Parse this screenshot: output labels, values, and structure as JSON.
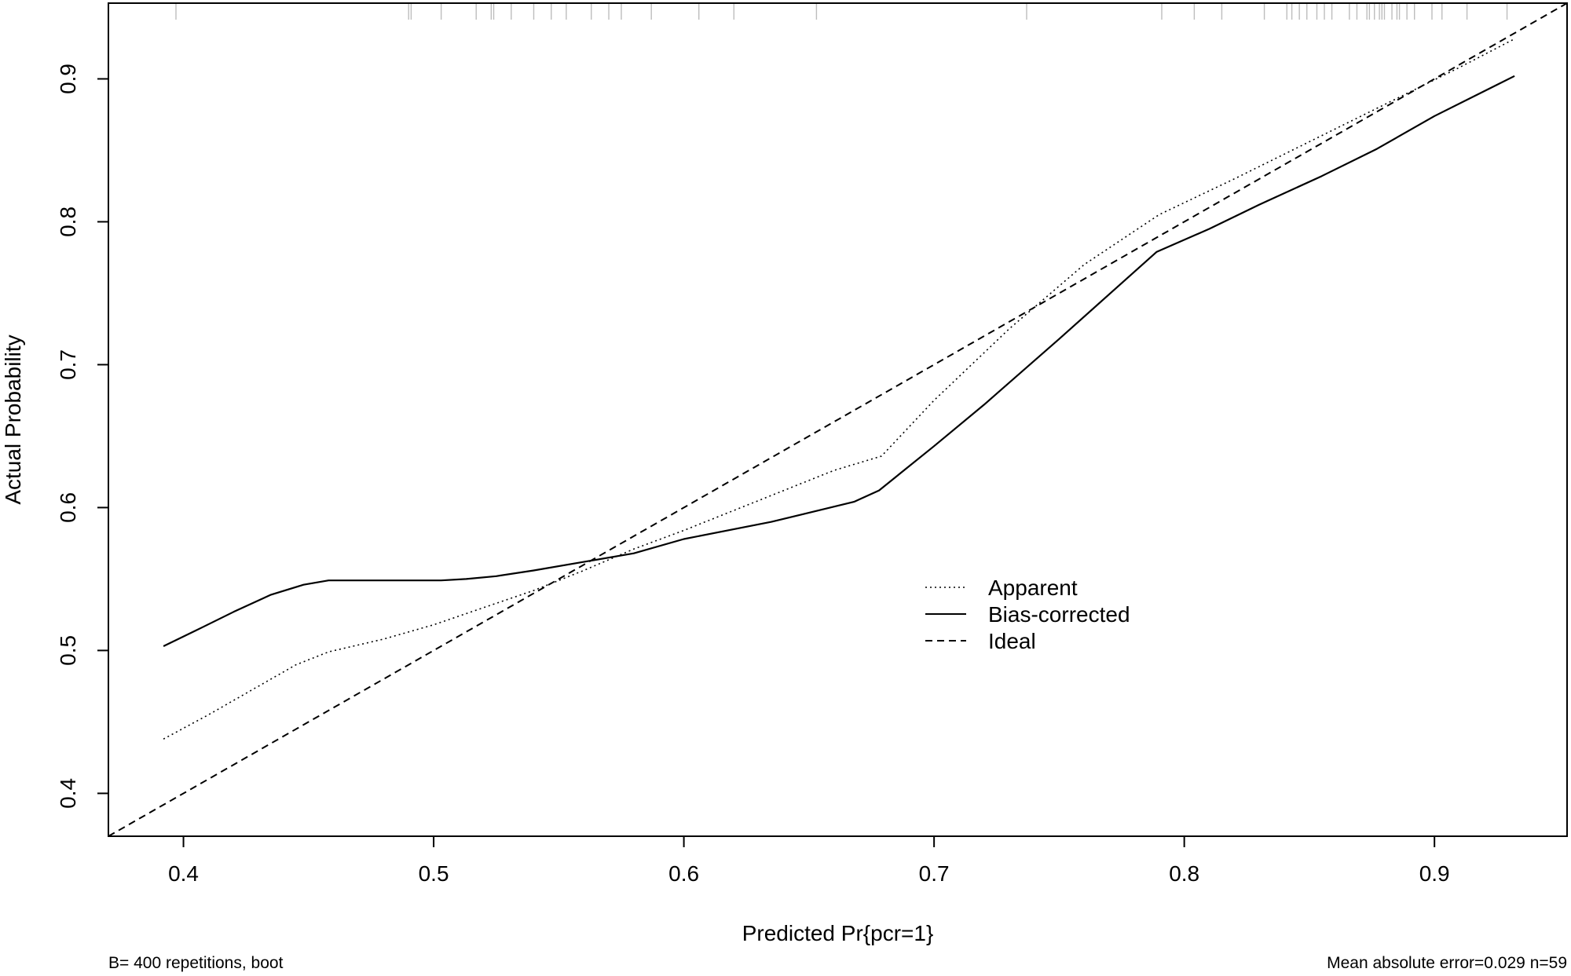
{
  "chart_data": {
    "type": "line",
    "title": "",
    "xlabel": "Predicted Pr{pcr=1}",
    "ylabel": "Actual Probability",
    "xlim": [
      0.37,
      0.953
    ],
    "ylim": [
      0.37,
      0.953
    ],
    "x_ticks": [
      {
        "value": 0.4,
        "label": "0.4"
      },
      {
        "value": 0.5,
        "label": "0.5"
      },
      {
        "value": 0.6,
        "label": "0.6"
      },
      {
        "value": 0.7,
        "label": "0.7"
      },
      {
        "value": 0.8,
        "label": "0.8"
      },
      {
        "value": 0.9,
        "label": "0.9"
      }
    ],
    "y_ticks": [
      {
        "value": 0.4,
        "label": "0.4"
      },
      {
        "value": 0.5,
        "label": "0.5"
      },
      {
        "value": 0.6,
        "label": "0.6"
      },
      {
        "value": 0.7,
        "label": "0.7"
      },
      {
        "value": 0.8,
        "label": "0.8"
      },
      {
        "value": 0.9,
        "label": "0.9"
      }
    ],
    "grid": false,
    "legend_position": "center-right",
    "series": [
      {
        "name": "Apparent",
        "line_style": "dotted",
        "color": "#000000",
        "x": [
          0.392,
          0.41,
          0.43,
          0.445,
          0.458,
          0.48,
          0.5,
          0.52,
          0.54,
          0.56,
          0.58,
          0.6,
          0.63,
          0.66,
          0.679,
          0.7,
          0.73,
          0.76,
          0.79,
          0.82,
          0.85,
          0.88,
          0.91,
          0.932
        ],
        "y": [
          0.438,
          0.455,
          0.475,
          0.49,
          0.499,
          0.508,
          0.518,
          0.53,
          0.542,
          0.556,
          0.571,
          0.584,
          0.605,
          0.626,
          0.636,
          0.675,
          0.725,
          0.77,
          0.805,
          0.83,
          0.856,
          0.882,
          0.908,
          0.928
        ]
      },
      {
        "name": "Bias-corrected",
        "line_style": "solid",
        "color": "#000000",
        "x": [
          0.392,
          0.405,
          0.42,
          0.435,
          0.448,
          0.458,
          0.475,
          0.49,
          0.503,
          0.513,
          0.525,
          0.54,
          0.56,
          0.58,
          0.6,
          0.635,
          0.668,
          0.678,
          0.7,
          0.72,
          0.75,
          0.789,
          0.81,
          0.83,
          0.855,
          0.877,
          0.9,
          0.932
        ],
        "y": [
          0.503,
          0.514,
          0.527,
          0.539,
          0.546,
          0.549,
          0.549,
          0.549,
          0.549,
          0.55,
          0.552,
          0.556,
          0.562,
          0.568,
          0.578,
          0.59,
          0.604,
          0.612,
          0.643,
          0.672,
          0.718,
          0.779,
          0.795,
          0.812,
          0.832,
          0.851,
          0.874,
          0.902
        ]
      },
      {
        "name": "Ideal",
        "line_style": "dashed",
        "color": "#000000",
        "x": [
          0.37,
          0.953
        ],
        "y": [
          0.37,
          0.953
        ]
      }
    ],
    "rug_values": [
      0.397,
      0.49,
      0.491,
      0.503,
      0.517,
      0.523,
      0.524,
      0.531,
      0.54,
      0.547,
      0.553,
      0.563,
      0.57,
      0.575,
      0.587,
      0.606,
      0.62,
      0.653,
      0.737,
      0.791,
      0.804,
      0.815,
      0.832,
      0.841,
      0.843,
      0.846,
      0.849,
      0.853,
      0.856,
      0.859,
      0.866,
      0.869,
      0.873,
      0.874,
      0.876,
      0.878,
      0.879,
      0.88,
      0.883,
      0.885,
      0.886,
      0.889,
      0.892,
      0.899,
      0.903,
      0.913,
      0.929
    ],
    "annotations": {
      "bottom_left": "B= 400 repetitions, boot",
      "bottom_right": "Mean absolute error=0.029 n=59"
    }
  }
}
